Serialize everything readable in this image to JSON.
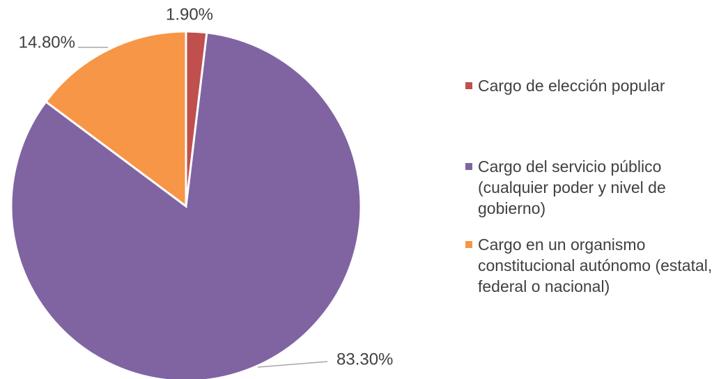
{
  "chart_data": {
    "type": "pie",
    "categories": [
      "Cargo de elección popular",
      "Cargo del servicio público (cualquier poder y nivel de gobierno)",
      "Cargo en un organismo constitucional autónomo (estatal, federal o nacional)"
    ],
    "values": [
      1.9,
      83.3,
      14.8
    ],
    "value_labels": [
      "1.90%",
      "83.30%",
      "14.80%"
    ],
    "colors": [
      "#c0504d",
      "#8064a2",
      "#f79646"
    ],
    "legend": "right"
  }
}
